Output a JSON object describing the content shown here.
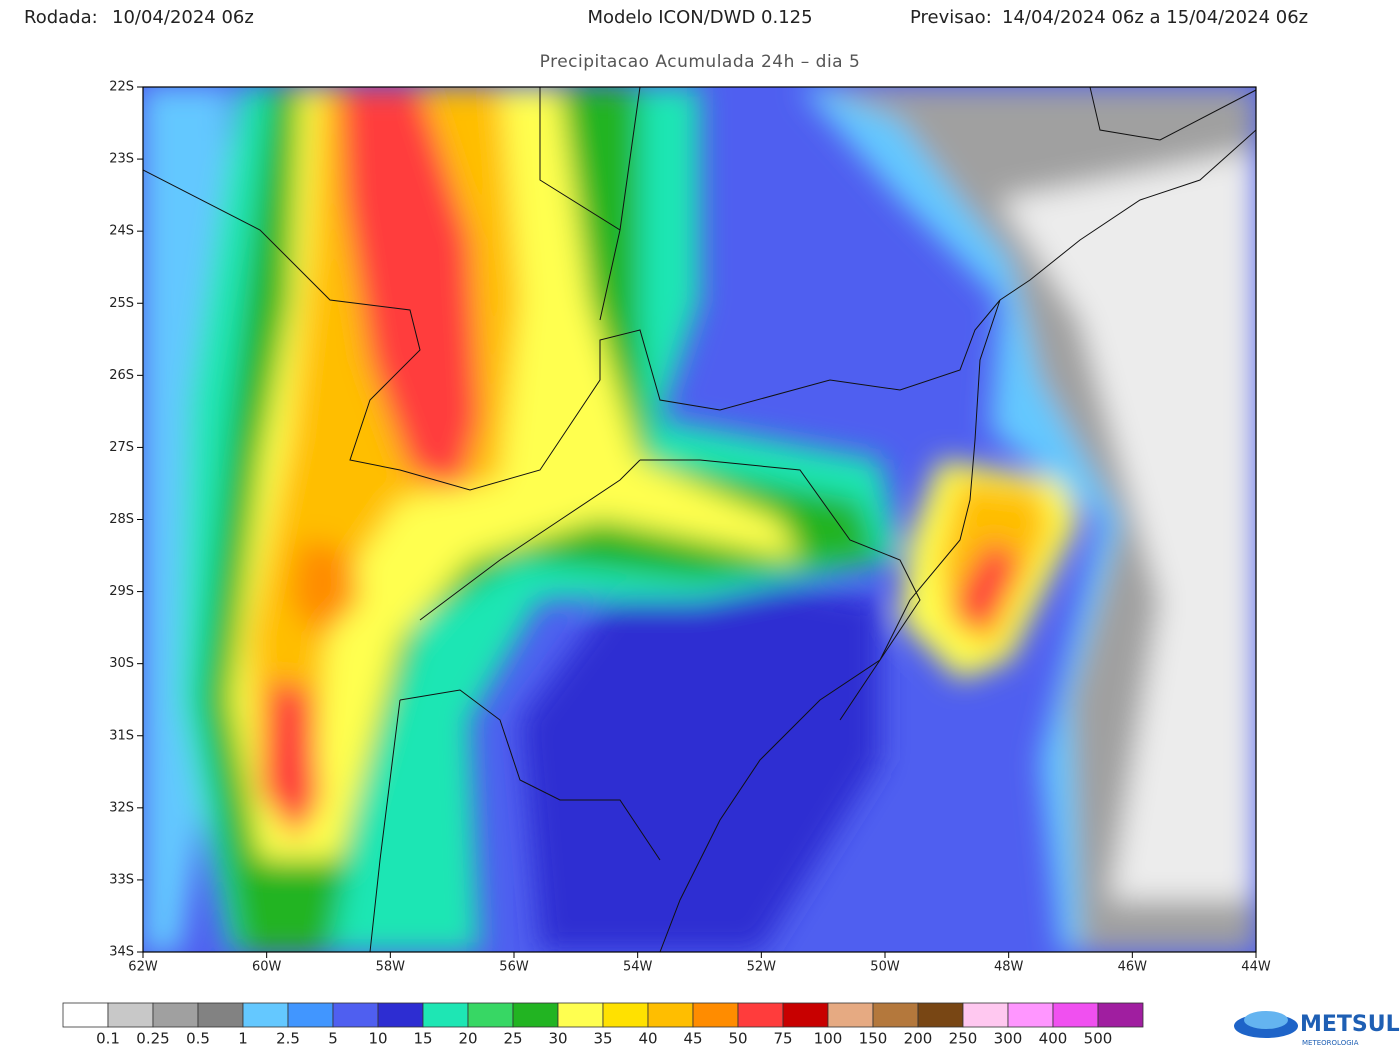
{
  "header": {
    "run_label": "Rodada:",
    "run": "10/04/2024 06z",
    "model": "Modelo ICON/DWD 0.125",
    "forecast_label": "Previsao:",
    "forecast": "14/04/2024 06z a 15/04/2024 06z",
    "subtitle": "Precipitacao Acumulada 24h – dia 5"
  },
  "map": {
    "lat_labels": [
      "22S",
      "23S",
      "24S",
      "25S",
      "26S",
      "27S",
      "28S",
      "29S",
      "30S",
      "31S",
      "32S",
      "33S",
      "34S"
    ],
    "lon_labels": [
      "62W",
      "60W",
      "58W",
      "56W",
      "54W",
      "52W",
      "50W",
      "48W",
      "46W",
      "44W"
    ]
  },
  "legend": {
    "colors": [
      "#ffffff",
      "#c8c8c8",
      "#a0a0a0",
      "#828282",
      "#64c8ff",
      "#4196ff",
      "#4f5ff0",
      "#2d2dd2",
      "#1ee6b4",
      "#37d764",
      "#22b422",
      "#ffff50",
      "#ffe100",
      "#ffbe00",
      "#ff8c00",
      "#ff3c3c",
      "#c80000",
      "#e6aa82",
      "#b4783c",
      "#784614",
      "#ffc8f0",
      "#ff96ff",
      "#f050f0",
      "#a01ea0"
    ],
    "labels": [
      "0.1",
      "0.25",
      "0.5",
      "1",
      "2.5",
      "5",
      "10",
      "15",
      "20",
      "25",
      "30",
      "35",
      "40",
      "45",
      "50",
      "75",
      "100",
      "150",
      "200",
      "250",
      "300",
      "400",
      "500"
    ]
  },
  "logo": {
    "name": "METSUL",
    "tagline": "METEOROLOGIA"
  }
}
